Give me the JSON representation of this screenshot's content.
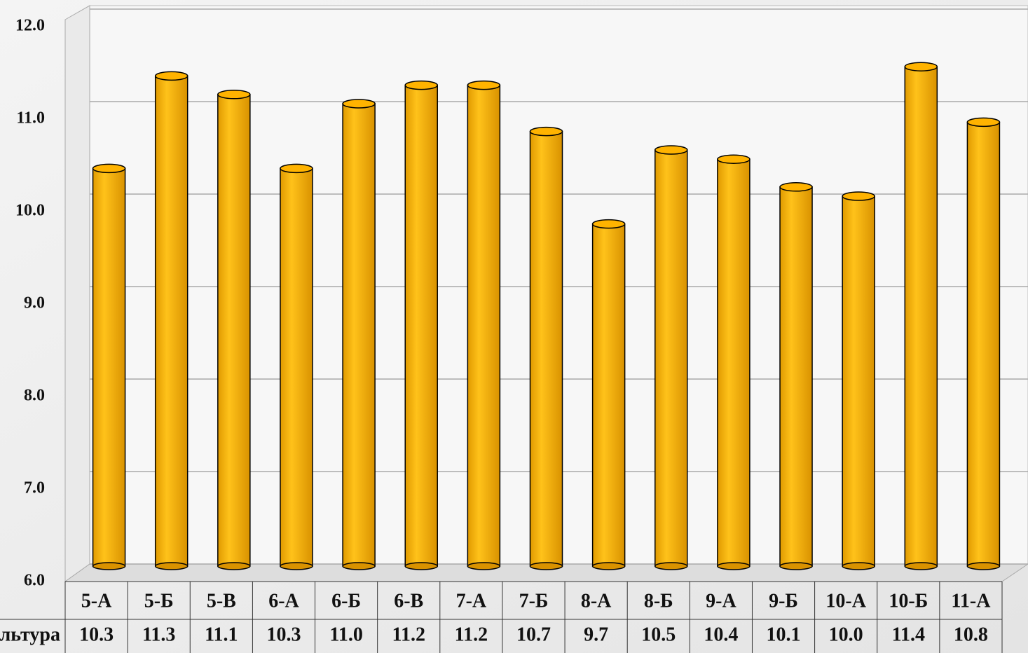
{
  "chart_data": {
    "type": "bar",
    "categories": [
      "5-А",
      "5-Б",
      "5-В",
      "6-А",
      "6-Б",
      "6-В",
      "7-А",
      "7-Б",
      "8-А",
      "8-Б",
      "9-А",
      "9-Б",
      "10-А",
      "10-Б",
      "11-А"
    ],
    "series": [
      {
        "name": "Физкультура",
        "color": "#ffb300",
        "values": [
          10.3,
          11.3,
          11.1,
          10.3,
          11.0,
          11.2,
          11.2,
          10.7,
          9.7,
          10.5,
          10.4,
          10.1,
          10.0,
          11.4,
          10.8
        ],
        "value_labels": [
          "10.3",
          "11.3",
          "11.1",
          "10.3",
          "11.0",
          "11.2",
          "11.2",
          "10.7",
          "9.7",
          "10.5",
          "10.4",
          "10.1",
          "10.0",
          "11.4",
          "10.8"
        ]
      }
    ],
    "ylim": [
      6,
      12
    ],
    "yticks": [
      {
        "value": 6,
        "label": "6.0"
      },
      {
        "value": 7,
        "label": "7.0"
      },
      {
        "value": 8,
        "label": "8.0"
      },
      {
        "value": 9,
        "label": "9.0"
      },
      {
        "value": 10,
        "label": "10.0"
      },
      {
        "value": 11,
        "label": "11.0"
      },
      {
        "value": 12,
        "label": "12.0"
      }
    ],
    "grid": true
  }
}
